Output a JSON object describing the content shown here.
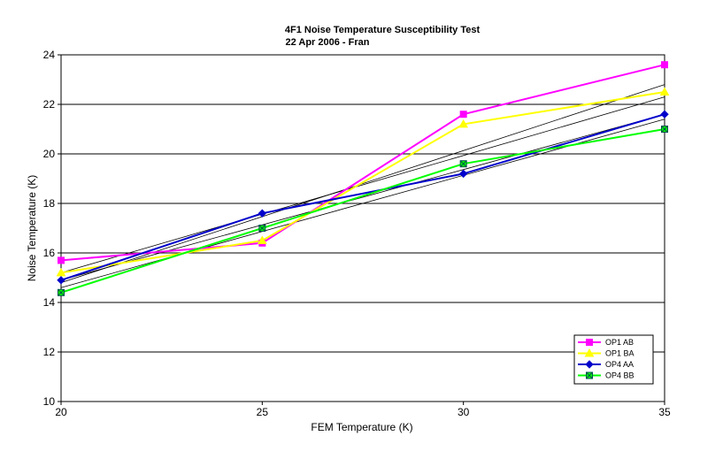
{
  "chart_data": {
    "type": "line",
    "title": "4F1 Noise Temperature Susceptibility Test",
    "subtitle": "22 Apr 2006 - Fran",
    "xlabel": "FEM Temperature (K)",
    "ylabel": "Noise Temperature (K)",
    "xlim": [
      20,
      35
    ],
    "ylim": [
      10,
      24
    ],
    "x_ticks": [
      "20",
      "25",
      "30",
      "35"
    ],
    "y_ticks": [
      "10",
      "12",
      "14",
      "16",
      "18",
      "20",
      "22",
      "24"
    ],
    "grid": "horizontal",
    "legend_position": "bottom-right",
    "x": [
      20,
      25,
      30,
      35
    ],
    "series": [
      {
        "name": "OP1 AB",
        "values": [
          15.7,
          16.4,
          21.6,
          23.6
        ],
        "color": "#ff00ff",
        "marker": "square"
      },
      {
        "name": "OP1 BA",
        "values": [
          15.2,
          16.5,
          21.2,
          22.5
        ],
        "color": "#ffff00",
        "marker": "triangle"
      },
      {
        "name": "OP4 AA",
        "values": [
          14.9,
          17.6,
          19.2,
          21.6
        ],
        "color": "#0000cc",
        "marker": "diamond"
      },
      {
        "name": "OP4 BB",
        "values": [
          14.4,
          17.0,
          19.6,
          21.0
        ],
        "color": "#00ff00",
        "marker": "circle-x"
      }
    ],
    "trendlines": [
      {
        "x": [
          20,
          35
        ],
        "y": [
          14.8,
          22.8
        ]
      },
      {
        "x": [
          20,
          35
        ],
        "y": [
          15.2,
          22.3
        ]
      },
      {
        "x": [
          20,
          35
        ],
        "y": [
          14.9,
          21.6
        ]
      },
      {
        "x": [
          20,
          35
        ],
        "y": [
          14.6,
          21.4
        ]
      }
    ]
  }
}
